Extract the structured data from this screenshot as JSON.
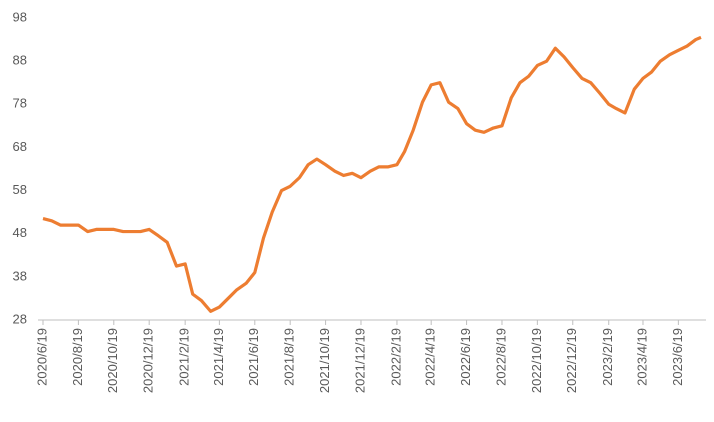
{
  "chart_data": {
    "type": "line",
    "x": [
      "2020/6/19",
      "2020/7/4",
      "2020/7/19",
      "2020/8/4",
      "2020/8/19",
      "2020/9/4",
      "2020/9/19",
      "2020/10/4",
      "2020/10/19",
      "2020/11/4",
      "2020/11/19",
      "2020/12/4",
      "2020/12/19",
      "2021/1/4",
      "2021/1/19",
      "2021/2/4",
      "2021/2/19",
      "2021/3/4",
      "2021/3/19",
      "2021/4/4",
      "2021/4/19",
      "2021/5/4",
      "2021/5/19",
      "2021/6/4",
      "2021/6/19",
      "2021/7/4",
      "2021/7/19",
      "2021/8/4",
      "2021/8/19",
      "2021/9/4",
      "2021/9/19",
      "2021/10/4",
      "2021/10/19",
      "2021/11/4",
      "2021/11/19",
      "2021/12/4",
      "2021/12/19",
      "2022/1/4",
      "2022/1/19",
      "2022/2/4",
      "2022/2/19",
      "2022/3/4",
      "2022/3/19",
      "2022/4/4",
      "2022/4/19",
      "2022/5/4",
      "2022/5/19",
      "2022/6/4",
      "2022/6/19",
      "2022/7/4",
      "2022/7/19",
      "2022/8/4",
      "2022/8/19",
      "2022/9/4",
      "2022/9/19",
      "2022/10/4",
      "2022/10/19",
      "2022/11/4",
      "2022/11/19",
      "2022/12/4",
      "2022/12/19",
      "2023/1/4",
      "2023/1/19",
      "2023/2/4",
      "2023/2/19",
      "2023/3/4",
      "2023/3/19",
      "2023/4/4",
      "2023/4/19",
      "2023/5/4",
      "2023/5/19",
      "2023/6/4",
      "2023/6/19",
      "2023/7/4",
      "2023/7/19",
      "2023/7/28"
    ],
    "series": [
      {
        "color": "#ed7d31",
        "values": [
          51.5,
          51,
          50,
          50,
          50,
          48.5,
          49,
          49,
          49,
          48.5,
          48.5,
          48.5,
          49,
          47.5,
          46,
          40.5,
          41,
          34,
          32.5,
          30,
          31,
          33,
          35,
          36.5,
          39,
          47,
          53,
          58,
          59,
          61,
          64,
          65.3,
          64,
          62.5,
          61.5,
          62,
          61,
          62.5,
          63.5,
          63.5,
          64,
          67,
          72,
          78.5,
          82.5,
          83,
          78.5,
          77,
          73.5,
          72,
          71.5,
          72.5,
          73,
          79.5,
          83,
          84.5,
          87,
          88,
          91,
          89,
          86.5,
          84,
          83,
          80.5,
          78,
          77,
          76,
          81.5,
          84,
          85.5,
          88,
          89.5,
          90.5,
          91.5,
          93,
          93.5
        ]
      }
    ],
    "xticks": [
      "2020/6/19",
      "2020/8/19",
      "2020/10/19",
      "2020/12/19",
      "2021/2/19",
      "2021/4/19",
      "2021/6/19",
      "2021/8/19",
      "2021/10/19",
      "2021/12/19",
      "2022/2/19",
      "2022/4/19",
      "2022/6/19",
      "2022/8/19",
      "2022/10/19",
      "2022/12/19",
      "2023/2/19",
      "2023/4/19",
      "2023/6/19"
    ],
    "ylim": [
      28,
      98
    ],
    "yticks": [
      28,
      38,
      48,
      58,
      68,
      78,
      88,
      98
    ]
  }
}
